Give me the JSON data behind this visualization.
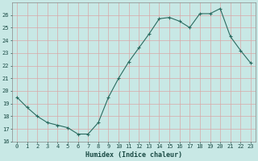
{
  "x": [
    0,
    1,
    2,
    3,
    4,
    5,
    6,
    7,
    8,
    9,
    10,
    11,
    12,
    13,
    14,
    15,
    16,
    17,
    18,
    19,
    20,
    21,
    22,
    23
  ],
  "y": [
    19.5,
    18.7,
    18.0,
    17.5,
    17.3,
    17.1,
    16.6,
    16.6,
    17.5,
    19.5,
    21.0,
    22.3,
    23.4,
    24.5,
    25.7,
    25.8,
    25.5,
    25.0,
    26.1,
    26.1,
    26.5,
    24.3,
    23.2,
    22.2
  ],
  "xlabel": "Humidex (Indice chaleur)",
  "bg_color": "#c8e8e5",
  "grid_color": "#d8a8a8",
  "line_color": "#2a6b60",
  "xlim": [
    -0.5,
    23.5
  ],
  "ylim": [
    16,
    27
  ],
  "yticks": [
    16,
    17,
    18,
    19,
    20,
    21,
    22,
    23,
    24,
    25,
    26
  ],
  "xticks": [
    0,
    1,
    2,
    3,
    4,
    5,
    6,
    7,
    8,
    9,
    10,
    11,
    12,
    13,
    14,
    15,
    16,
    17,
    18,
    19,
    20,
    21,
    22,
    23
  ],
  "xlabel_fontsize": 6.0,
  "tick_fontsize": 5.0
}
